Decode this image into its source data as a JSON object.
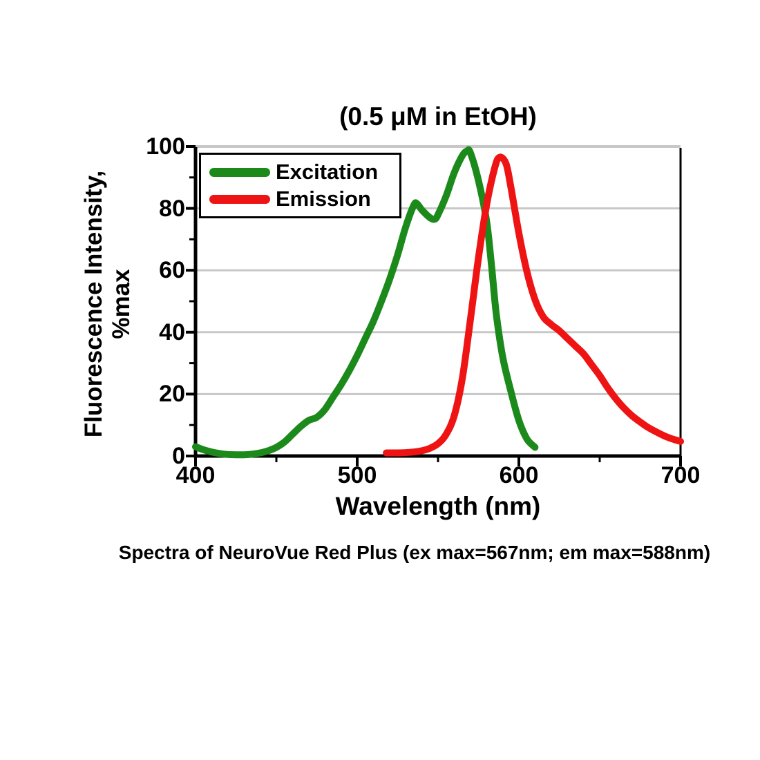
{
  "caption": "Spectra of NeuroVue Red Plus (ex max=567nm; em max=588nm)",
  "chart_data": {
    "type": "line",
    "title": "(0.5 μM in EtOH)",
    "xlabel": "Wavelength (nm)",
    "ylabel": "Fluorescence Intensity, %max",
    "ylabel_line1": "Fluorescence Intensity,",
    "ylabel_line2": "%max",
    "xlim": [
      400,
      700
    ],
    "ylim": [
      0,
      100
    ],
    "x_major_ticks": [
      400,
      500,
      600,
      700
    ],
    "x_minor_ticks": [
      450,
      550,
      650
    ],
    "y_major_ticks": [
      0,
      20,
      40,
      60,
      80,
      100
    ],
    "y_minor_ticks": [
      10,
      30,
      50,
      70,
      90
    ],
    "grid": "horizontal-major",
    "grid_color": "#c8c8c8",
    "legend_position": "top-left",
    "series": [
      {
        "name": "Excitation",
        "color": "#1b8a1b",
        "peak_nm": 567,
        "x": [
          400,
          405,
          410,
          415,
          420,
          425,
          430,
          435,
          440,
          445,
          450,
          455,
          460,
          465,
          470,
          475,
          480,
          485,
          490,
          495,
          500,
          505,
          510,
          515,
          520,
          525,
          530,
          535,
          537,
          540,
          545,
          548,
          550,
          555,
          560,
          565,
          568,
          570,
          575,
          580,
          583,
          586,
          590,
          595,
          600,
          605,
          610
        ],
        "y": [
          3,
          2,
          1.3,
          0.8,
          0.5,
          0.4,
          0.4,
          0.6,
          1,
          1.7,
          2.8,
          4.5,
          7,
          9.5,
          11.5,
          12.5,
          15,
          19,
          23,
          27.5,
          32.5,
          38,
          43.5,
          50,
          57,
          65,
          74,
          81,
          81.5,
          79.5,
          77,
          76.5,
          78,
          84,
          91.5,
          97,
          98.6,
          98,
          89,
          76,
          62,
          46,
          32,
          21,
          11.5,
          5.5,
          2.8
        ]
      },
      {
        "name": "Emission",
        "color": "#ee1414",
        "peak_nm": 588,
        "x": [
          518,
          525,
          530,
          535,
          540,
          545,
          550,
          555,
          560,
          565,
          570,
          575,
          580,
          585,
          588,
          592,
          595,
          600,
          605,
          610,
          615,
          620,
          625,
          630,
          635,
          640,
          645,
          650,
          655,
          660,
          665,
          670,
          675,
          680,
          685,
          690,
          695,
          700
        ],
        "y": [
          1,
          1,
          1.1,
          1.3,
          1.7,
          2.5,
          4,
          7,
          13,
          25,
          44,
          64,
          81,
          93,
          96.5,
          94.5,
          87,
          72,
          59.5,
          50.5,
          45,
          42.5,
          40.5,
          38,
          35.5,
          33,
          29.5,
          26,
          22,
          18.5,
          15.5,
          13,
          11,
          9.2,
          7.8,
          6.5,
          5.5,
          4.7
        ]
      }
    ]
  }
}
